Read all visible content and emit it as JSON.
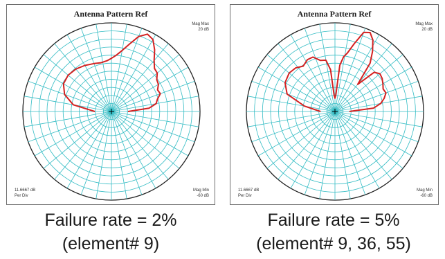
{
  "chart_data": [
    {
      "type": "polar-line",
      "title": "Antenna Pattern Ref",
      "mag_max": [
        "Mag Max",
        "20 dB"
      ],
      "mag_min": [
        "Mag Min",
        "-60 dB"
      ],
      "per_div": [
        "11.6667 dB",
        "Per Div"
      ],
      "radial_range": [
        -60,
        20
      ],
      "grid": true,
      "series_color": "#d42020",
      "theta_deg": [
        -90,
        -80,
        -70,
        -60,
        -50,
        -40,
        -30,
        -20,
        -12,
        -5,
        0,
        5,
        10,
        15,
        20,
        25,
        30,
        35,
        40,
        45,
        50,
        55,
        60,
        65,
        70,
        75,
        80,
        85,
        90
      ],
      "gain_db": [
        -45,
        -25,
        -15,
        -10,
        -9,
        -10,
        -12,
        -14,
        -15,
        -14,
        -12,
        -9,
        -4,
        3,
        12,
        17,
        15,
        8,
        0,
        -5,
        -6,
        -10,
        -11,
        -14,
        -13,
        -17,
        -19,
        -26,
        -45
      ],
      "caption": [
        "Failure rate = 2%",
        "(element# 9)"
      ]
    },
    {
      "type": "polar-line",
      "title": "Antenna Pattern Ref",
      "mag_max": [
        "Mag Max",
        "20 dB"
      ],
      "mag_min": [
        "Mag Min",
        "-60 dB"
      ],
      "per_div": [
        "11.6667 dB",
        "Per Div"
      ],
      "radial_range": [
        -60,
        20
      ],
      "grid": true,
      "series_color": "#d42020",
      "theta_deg": [
        -90,
        -80,
        -70,
        -60,
        -50,
        -42,
        -35,
        -28,
        -22,
        -16,
        -10,
        -6,
        -3,
        0,
        3,
        6,
        9,
        12,
        16,
        20,
        24,
        28,
        32,
        36,
        40,
        45,
        50,
        55,
        60,
        65,
        70,
        75,
        80,
        85,
        90
      ],
      "gain_db": [
        -47,
        -32,
        -14,
        -8,
        -6,
        -7,
        -10,
        -7,
        -7,
        -12,
        -13,
        -22,
        -45,
        -48,
        -45,
        -18,
        -10,
        -6,
        4,
        16,
        18,
        13,
        4,
        -6,
        -28,
        -10,
        -7,
        -8,
        -10,
        -12,
        -11,
        -14,
        -18,
        -25,
        -47
      ],
      "caption": [
        "Failure rate = 5%",
        "(element# 9, 36, 55)"
      ]
    }
  ]
}
